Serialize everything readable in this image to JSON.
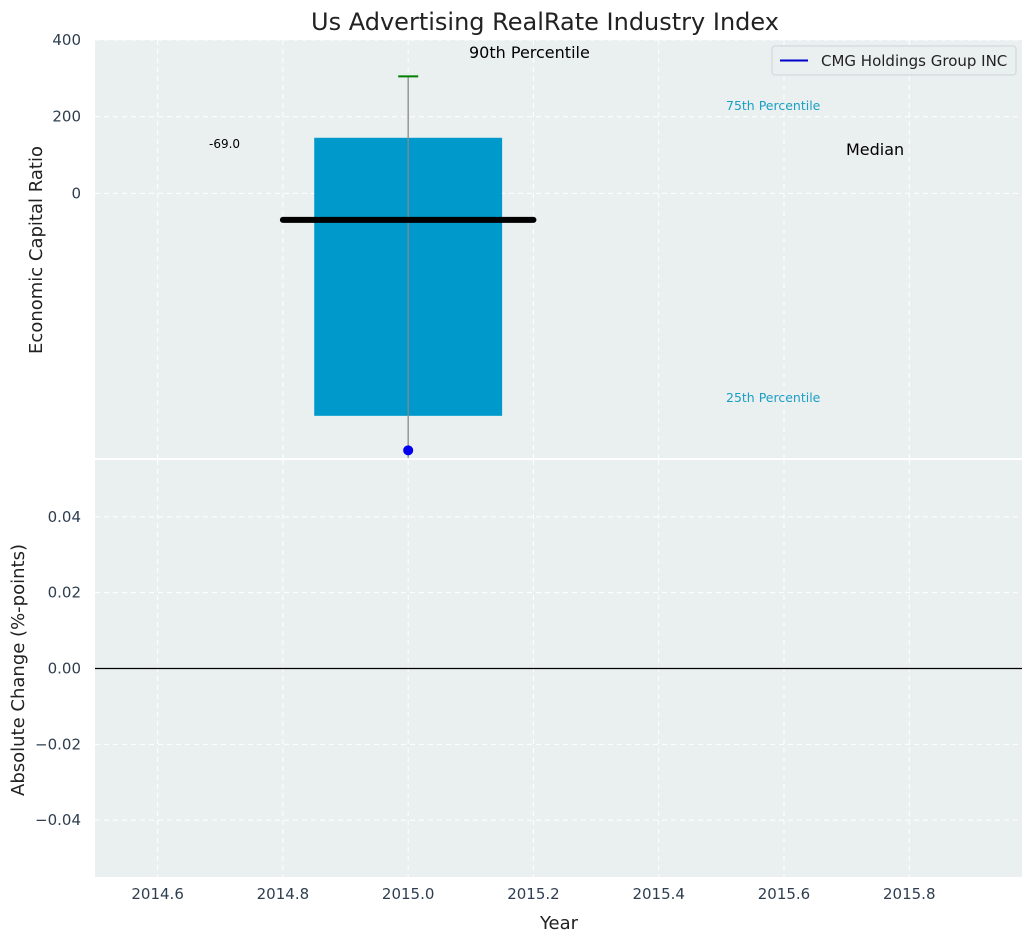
{
  "chart_data": [
    {
      "type": "box",
      "title": "Us Advertising RealRate Industry Index",
      "ylabel": "Economic Capital Ratio",
      "ylim": [
        -690,
        400
      ],
      "yticks": [
        0,
        200,
        400
      ],
      "ytick_labels": [
        "0",
        "200",
        "400"
      ],
      "x": 2015.0,
      "bar": {
        "x_from": 2014.85,
        "x_to": 2015.15,
        "y_from": -580,
        "y_to": 145,
        "color": "#0099cc"
      },
      "median": {
        "value": -69,
        "x_from": 2014.8,
        "x_to": 2015.2,
        "label": "-69.0",
        "color": "#000000"
      },
      "whisker": {
        "low": -690,
        "high": 305,
        "color": "#888888"
      },
      "p90_cap": {
        "value": 305,
        "color": "#008000"
      },
      "company_point": {
        "value": -670,
        "color": "#0000ee"
      },
      "annotations": {
        "p90": "90th Percentile",
        "p75": "75th Percentile",
        "p25": "25th Percentile",
        "median": "Median",
        "pct_color": "#1a9fc4"
      },
      "legend": {
        "position": "top-right",
        "entries": [
          {
            "label": "CMG Holdings Group INC",
            "color": "#0000cc"
          }
        ]
      },
      "grid": true
    },
    {
      "type": "line",
      "xlabel": "Year",
      "ylabel": "Absolute Change (%-points)",
      "xlim": [
        2014.5,
        2015.98
      ],
      "xticks": [
        2014.6,
        2014.8,
        2015.0,
        2015.2,
        2015.4,
        2015.6,
        2015.8
      ],
      "xtick_labels": [
        "2014.6",
        "2014.8",
        "2015.0",
        "2015.2",
        "2015.4",
        "2015.6",
        "2015.8"
      ],
      "ylim": [
        -0.055,
        0.055
      ],
      "yticks": [
        0.04,
        0.02,
        0.0,
        -0.02,
        -0.04
      ],
      "ytick_labels": [
        "0.04",
        "0.02",
        "0.00",
        "−0.02",
        "−0.04"
      ],
      "zero_line": 0.0,
      "grid": true
    }
  ],
  "colors": {
    "plot_bg": "#eaeff0",
    "grid": "#ffffff",
    "text": "#2e3e50"
  }
}
